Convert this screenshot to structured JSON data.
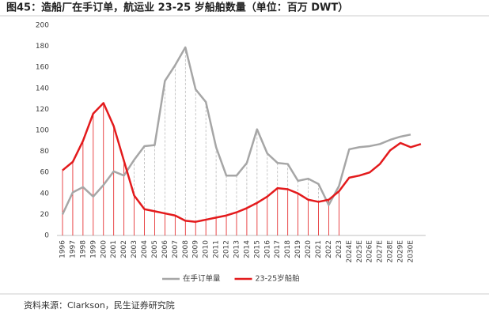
{
  "chart_data": {
    "type": "line",
    "title": "图45：造船厂在手订单，航运业 23-25 岁船舶数量（单位：百万 DWT）",
    "source": "资料来源：Clarkson，民生证券研究院",
    "categories": [
      "1996",
      "1997",
      "1998",
      "1999",
      "2000",
      "2001",
      "2002",
      "2003",
      "2004",
      "2005",
      "2006",
      "2007",
      "2008",
      "2009",
      "2010",
      "2011",
      "2012",
      "2013",
      "2014",
      "2015",
      "2016",
      "2017",
      "2018",
      "2019",
      "2020",
      "2021",
      "2022",
      "2023",
      "2024E",
      "2025E",
      "2026E",
      "2027E",
      "2028E",
      "2029E",
      "2030E",
      null
    ],
    "series": [
      {
        "name": "在手订单量",
        "color": "#a6a6a6",
        "values": [
          20,
          41,
          46,
          37,
          48,
          61,
          57,
          72,
          85,
          86,
          147,
          162,
          179,
          139,
          127,
          84,
          57,
          57,
          69,
          101,
          78,
          69,
          68,
          52,
          54,
          49,
          29,
          47,
          82,
          84,
          85,
          87,
          91,
          94,
          96,
          null
        ]
      },
      {
        "name": "23-25岁船舶",
        "color": "#e31a1c",
        "values": [
          62,
          70,
          90,
          116,
          126,
          104,
          71,
          38,
          25,
          23,
          21,
          19,
          14,
          13,
          15,
          17,
          19,
          22,
          26,
          31,
          37,
          45,
          44,
          40,
          34,
          32,
          34,
          42,
          55,
          57,
          60,
          68,
          81,
          88,
          84,
          87
        ]
      }
    ],
    "ylim": [
      0,
      200
    ],
    "yticks": [
      0,
      20,
      40,
      60,
      80,
      100,
      120,
      140,
      160,
      180,
      200
    ],
    "legend": "bottom"
  }
}
